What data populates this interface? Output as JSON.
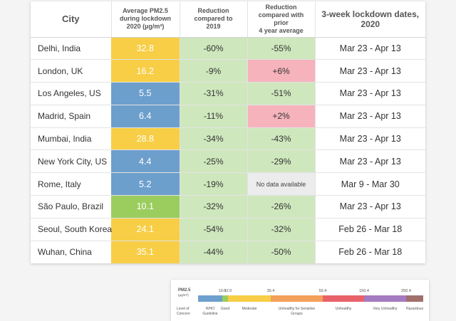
{
  "chart_data": {
    "type": "table",
    "columns": [
      "City",
      "Average PM2.5 during lockdown 2020 (µg/m³)",
      "Reduction compared to 2019",
      "Reduction compared with prior 4 year average",
      "3-week lockdown dates, 2020"
    ],
    "header_lines": {
      "pm": [
        "Average PM2.5",
        "during lockdown",
        "2020 (µg/m³)"
      ],
      "red2019": [
        "Reduction",
        "compared to",
        "2019"
      ],
      "red4yr": [
        "Reduction",
        "compared with prior",
        "4 year average"
      ],
      "dates": [
        "3-week lockdown dates,",
        "2020"
      ]
    },
    "rows": [
      {
        "city": "Delhi, India",
        "pm25": "32.8",
        "pm25_value": 32.8,
        "red_2019": "-60%",
        "red_4yr": "-55%",
        "dates": "Mar 23 - Apr 13"
      },
      {
        "city": "London, UK",
        "pm25": "16.2",
        "pm25_value": 16.2,
        "red_2019": "-9%",
        "red_4yr": "+6%",
        "dates": "Mar 23 - Apr 13"
      },
      {
        "city": "Los Angeles, US",
        "pm25": "5.5",
        "pm25_value": 5.5,
        "red_2019": "-31%",
        "red_4yr": "-51%",
        "dates": "Mar 23 - Apr 13"
      },
      {
        "city": "Madrid, Spain",
        "pm25": "6.4",
        "pm25_value": 6.4,
        "red_2019": "-11%",
        "red_4yr": "+2%",
        "dates": "Mar 23 - Apr 13"
      },
      {
        "city": "Mumbai, India",
        "pm25": "28.8",
        "pm25_value": 28.8,
        "red_2019": "-34%",
        "red_4yr": "-43%",
        "dates": "Mar 23 - Apr 13"
      },
      {
        "city": "New York City, US",
        "pm25": "4.4",
        "pm25_value": 4.4,
        "red_2019": "-25%",
        "red_4yr": "-29%",
        "dates": "Mar 23 - Apr 13"
      },
      {
        "city": "Rome, Italy",
        "pm25": "5.2",
        "pm25_value": 5.2,
        "red_2019": "-19%",
        "red_4yr": "No data available",
        "dates": "Mar 9 - Mar 30"
      },
      {
        "city": "São Paulo, Brazil",
        "pm25": "10.1",
        "pm25_value": 10.1,
        "red_2019": "-32%",
        "red_4yr": "-26%",
        "dates": "Mar 23 - Apr 13"
      },
      {
        "city": "Seoul, South Korea",
        "pm25": "24.1",
        "pm25_value": 24.1,
        "red_2019": "-54%",
        "red_4yr": "-32%",
        "dates": "Feb 26 - Mar 18"
      },
      {
        "city": "Wuhan, China",
        "pm25": "35.1",
        "pm25_value": 35.1,
        "red_2019": "-44%",
        "red_4yr": "-50%",
        "dates": "Feb 26 - Mar 18"
      }
    ],
    "colors": {
      "pm_blue": "#6d9fcd",
      "pm_green": "#9bcd5e",
      "pm_yellow": "#f7ce45",
      "reduction_bg": "#cfe7bd",
      "increase_bg": "#f6b3bc",
      "no_data_bg": "#ececec"
    },
    "legend": {
      "title_lines": [
        "PM2.5",
        "(µg/m³)"
      ],
      "concern_lines": [
        "Level of",
        "Concern"
      ],
      "thresholds": [
        {
          "value": 10.0,
          "label": "10.0"
        },
        {
          "value": 12.0,
          "label": "12.0"
        },
        {
          "value": 35.4,
          "label": "35.4"
        },
        {
          "value": 55.4,
          "label": "55.4"
        },
        {
          "value": 150.4,
          "label": "150.4"
        },
        {
          "value": 250.4,
          "label": "250.4"
        }
      ],
      "bands": [
        {
          "label_lines": [
            "WHO",
            "Guideline"
          ],
          "color": "#6d9fcd"
        },
        {
          "label_lines": [
            "Good"
          ],
          "color": "#9bcd5e"
        },
        {
          "label_lines": [
            "Moderate"
          ],
          "color": "#f7ce45"
        },
        {
          "label_lines": [
            "Unhealthy for Sensitive",
            "Groups"
          ],
          "color": "#f3a05a"
        },
        {
          "label_lines": [
            "Unhealthy"
          ],
          "color": "#e9626a"
        },
        {
          "label_lines": [
            "Very Unhealthy"
          ],
          "color": "#a47bc1"
        },
        {
          "label_lines": [
            "Hazardous"
          ],
          "color": "#a1706d"
        }
      ]
    }
  }
}
